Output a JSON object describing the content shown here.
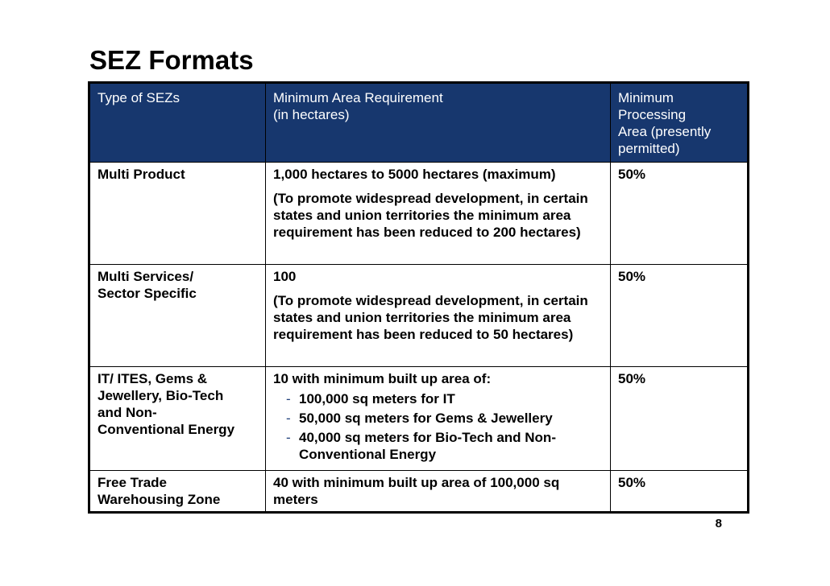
{
  "title": "SEZ Formats",
  "table": {
    "headers": {
      "type": "Type of SEZs",
      "area_line1": "Minimum Area Requirement",
      "area_line2": "(in hectares)",
      "processing_line1": "Minimum",
      "processing_line2": "Processing",
      "processing_line3": "Area (presently",
      "processing_line4": "permitted)"
    },
    "rows": [
      {
        "type_line1": "Multi Product",
        "area_main": "1,000 hectares to 5000 hectares (maximum)",
        "area_note": "(To promote widespread development, in certain states and union territories the minimum area requirement has been reduced to 200 hectares)",
        "processing": "50%"
      },
      {
        "type_line1": "Multi Services/",
        "type_line2": "Sector Specific",
        "area_main": "100",
        "area_note": "(To promote widespread development, in certain states and union territories the minimum area requirement has been reduced to 50 hectares)",
        "processing": "50%"
      },
      {
        "type_line1": "IT/ ITES, Gems &",
        "type_line2": "Jewellery, Bio-Tech",
        "type_line3": "and Non-",
        "type_line4": "Conventional Energy",
        "area_main": "10 with minimum built up area of:",
        "bullets": [
          "100,000 sq meters for IT",
          "50,000 sq meters for Gems & Jewellery",
          "40,000 sq meters for Bio-Tech and Non-Conventional Energy"
        ],
        "processing": "50%"
      },
      {
        "type_line1": "Free Trade",
        "type_line2": "Warehousing Zone",
        "area_main": "40 with minimum built up area of 100,000 sq meters",
        "processing": "50%"
      }
    ]
  },
  "bullet_marker": "-",
  "page_number": "8",
  "colors": {
    "header_bg": "#17376e",
    "header_text": "#ffffff",
    "bullet_dash": "#1f3f7a"
  }
}
